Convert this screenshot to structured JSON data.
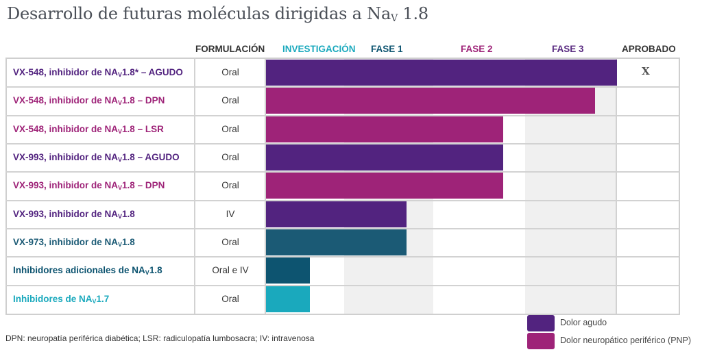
{
  "title": {
    "prefix": "Desarrollo de futuras moléculas dirigidas a Na",
    "sub": "V",
    "suffix": " 1.8"
  },
  "columns": {
    "formulation": "FORMULACIÓN",
    "stages": [
      "INVESTIGACIÓN",
      "FASE 1",
      "FASE 2",
      "FASE 3",
      "APROBADO"
    ]
  },
  "colors": {
    "purple": "#52237f",
    "magenta": "#9e2378",
    "teal_dark": "#1b5a75",
    "teal_mid": "#0d5470",
    "cyan": "#1aa9bd",
    "fase3_header": "#5b2d82"
  },
  "chart_data": {
    "type": "bar",
    "orientation": "horizontal",
    "stage_axis": [
      "INVESTIGACIÓN",
      "FASE 1",
      "FASE 2",
      "FASE 3",
      "APROBADO"
    ],
    "rows": [
      {
        "pre": "VX-548, inhibidor de NA",
        "sub": "V",
        "post": "1.8* – AGUDO",
        "formulation": "Oral",
        "progress": 4.0,
        "color": "purple",
        "approved_mark": "X"
      },
      {
        "pre": "VX-548, inhibidor de NA",
        "sub": "V",
        "post": "1.8 – DPN",
        "formulation": "Oral",
        "progress": 3.75,
        "color": "magenta"
      },
      {
        "pre": "VX-548, inhibidor de NA",
        "sub": "V",
        "post": "1.8 – LSR",
        "formulation": "Oral",
        "progress": 2.7,
        "color": "magenta"
      },
      {
        "pre": "VX-993, inhibidor de NA",
        "sub": "V",
        "post": "1.8 – AGUDO",
        "formulation": "Oral",
        "progress": 2.7,
        "color": "purple"
      },
      {
        "pre": "VX-993, inhibidor de NA",
        "sub": "V",
        "post": "1.8 – DPN",
        "formulation": "Oral",
        "progress": 2.7,
        "color": "magenta"
      },
      {
        "pre": "VX-993, inhibidor de NA",
        "sub": "V",
        "post": "1.8",
        "formulation": "IV",
        "progress": 1.6,
        "color": "purple"
      },
      {
        "pre": "VX-973, inhibidor de NA",
        "sub": "V",
        "post": "1.8",
        "formulation": "Oral",
        "progress": 1.6,
        "color": "teal_dark"
      },
      {
        "pre": "Inhibidores adicionales de NA",
        "sub": "V",
        "post": "1.8",
        "formulation": "Oral e IV",
        "progress": 0.5,
        "color": "teal_mid"
      },
      {
        "pre": "Inhibidores de NA",
        "sub": "V",
        "post": "1.7",
        "formulation": "Oral",
        "progress": 0.5,
        "color": "cyan"
      }
    ],
    "legend": [
      {
        "label": "Dolor agudo",
        "color": "purple"
      },
      {
        "label": "Dolor neuropático periférico (PNP)",
        "color": "magenta"
      }
    ]
  },
  "footnote": "DPN: neuropatía periférica diabética; LSR: radiculopatía lumbosacra; IV: intravenosa"
}
